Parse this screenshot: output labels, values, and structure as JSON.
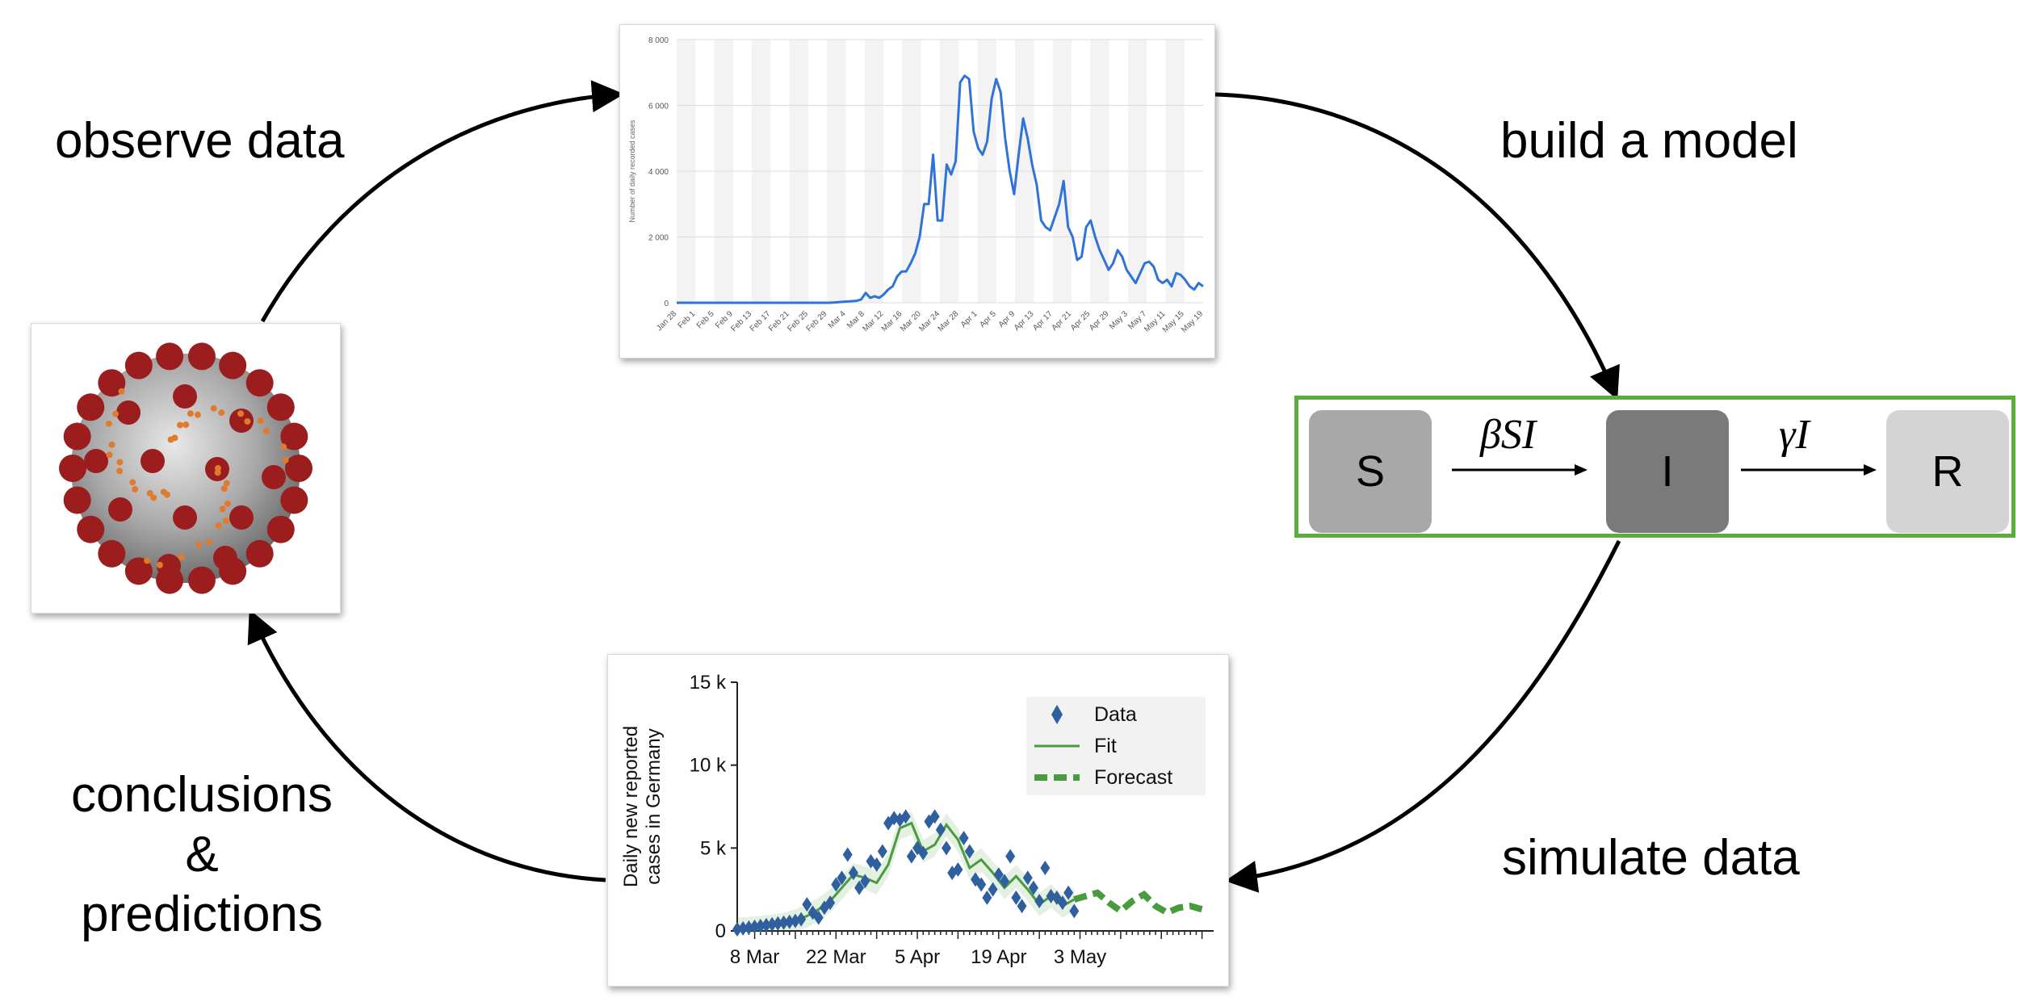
{
  "labels": {
    "observe": "observe data",
    "build": "build a model",
    "simulate": "simulate data",
    "conclusions": [
      "conclusions",
      "&",
      "predictions"
    ]
  },
  "icons": {
    "virus": "coronavirus-icon"
  },
  "colors": {
    "line_blue": "#2f73d8",
    "fit_green": "#4a9a3f",
    "model_border": "#5aad3a",
    "data_blue": "#2f5f9e"
  },
  "model": {
    "compartments": [
      "S",
      "I",
      "R"
    ],
    "rates": [
      "βSI",
      "γI"
    ]
  },
  "chart_data": [
    {
      "type": "line",
      "title": "",
      "xlabel": "",
      "ylabel": "Number of daily recorded cases",
      "ylim": [
        0,
        8000
      ],
      "y_ticks": [
        "0",
        "2 000",
        "4 000",
        "6 000",
        "8 000"
      ],
      "x_ticks": [
        "Jan 28",
        "Feb 1",
        "Feb 5",
        "Feb 9",
        "Feb 13",
        "Feb 17",
        "Feb 21",
        "Feb 25",
        "Feb 29",
        "Mar 4",
        "Mar 8",
        "Mar 12",
        "Mar 16",
        "Mar 20",
        "Mar 24",
        "Mar 28",
        "Apr 1",
        "Apr 5",
        "Apr 9",
        "Apr 13",
        "Apr 17",
        "Apr 21",
        "Apr 25",
        "Apr 29",
        "May 3",
        "May 7",
        "May 11",
        "May 15",
        "May 19"
      ],
      "grid": true,
      "series": [
        {
          "values": [
            0,
            0,
            0,
            0,
            0,
            0,
            0,
            0,
            0,
            0,
            0,
            0,
            0,
            0,
            0,
            0,
            0,
            0,
            0,
            0,
            0,
            0,
            0,
            0,
            0,
            0,
            0,
            0,
            0,
            0,
            0,
            0,
            0,
            0,
            0,
            10,
            20,
            30,
            40,
            50,
            60,
            100,
            300,
            150,
            200,
            150,
            250,
            400,
            500,
            800,
            950,
            950,
            1200,
            1500,
            2000,
            3000,
            3000,
            4500,
            2500,
            2500,
            4200,
            3900,
            4300,
            6700,
            6900,
            6800,
            5200,
            4700,
            4500,
            4900,
            6200,
            6800,
            6400,
            5000,
            4000,
            3300,
            4500,
            5600,
            5000,
            4200,
            3600,
            2500,
            2300,
            2200,
            2600,
            3000,
            3700,
            2300,
            2000,
            1300,
            1400,
            2300,
            2500,
            2000,
            1600,
            1300,
            1000,
            1200,
            1600,
            1400,
            1000,
            800,
            600,
            900,
            1200,
            1250,
            1100,
            700,
            600,
            700,
            500,
            900,
            850,
            700,
            500,
            400,
            600,
            500
          ]
        }
      ]
    },
    {
      "type": "line",
      "title": "",
      "xlabel": "",
      "ylabel": "Daily new reported cases in Germany",
      "ylim": [
        0,
        15000
      ],
      "y_ticks": [
        "0",
        "5 k",
        "10 k",
        "15 k"
      ],
      "x_ticks": [
        "8 Mar",
        "22 Mar",
        "5 Apr",
        "19 Apr",
        "3 May"
      ],
      "legend": {
        "position": "top-right",
        "entries": [
          "Data",
          "Fit",
          "Forecast"
        ]
      },
      "series": [
        {
          "name": "Data",
          "style": "diamond",
          "x_days": [
            0,
            1,
            2,
            3,
            4,
            5,
            6,
            7,
            8,
            9,
            10,
            11,
            12,
            13,
            14,
            15,
            16,
            17,
            18,
            19,
            20,
            21,
            22,
            23,
            24,
            25,
            26,
            27,
            28,
            29,
            30,
            31,
            32,
            33,
            34,
            35,
            36,
            37,
            38,
            39,
            40,
            41,
            42,
            43,
            44,
            45,
            46,
            47,
            48,
            49,
            50,
            51,
            52,
            53,
            54,
            55,
            56,
            57,
            58
          ],
          "values": [
            100,
            150,
            200,
            250,
            300,
            350,
            400,
            450,
            500,
            550,
            600,
            700,
            1600,
            1100,
            800,
            1400,
            1700,
            2800,
            3200,
            4600,
            3500,
            2600,
            3000,
            4200,
            4000,
            4800,
            6500,
            6800,
            6700,
            6900,
            4500,
            5000,
            4700,
            6600,
            6900,
            6100,
            5000,
            3500,
            3700,
            5600,
            4800,
            3100,
            2800,
            2000,
            2500,
            3400,
            3000,
            4500,
            2000,
            1500,
            3200,
            2600,
            1800,
            3800,
            2100,
            2000,
            1700,
            2300,
            1200
          ]
        },
        {
          "name": "Fit",
          "style": "solid",
          "x_days": [
            0,
            4,
            8,
            10,
            12,
            14,
            16,
            18,
            20,
            22,
            24,
            26,
            28,
            30,
            32,
            34,
            36,
            38,
            40,
            42,
            44,
            46,
            48,
            50,
            52,
            54,
            56,
            58
          ],
          "values": [
            100,
            200,
            400,
            600,
            900,
            1300,
            1800,
            2600,
            3400,
            3200,
            2900,
            4000,
            6200,
            6500,
            4800,
            5200,
            6400,
            5500,
            3800,
            4300,
            3500,
            2600,
            3300,
            2500,
            1600,
            2100,
            1500,
            1900
          ]
        },
        {
          "name": "Forecast",
          "style": "dashed",
          "x_days": [
            58,
            60,
            62,
            64,
            66,
            68,
            70,
            72,
            74,
            76,
            78,
            80
          ],
          "values": [
            1900,
            2100,
            2300,
            1700,
            1200,
            1800,
            2200,
            1500,
            1100,
            1400,
            1500,
            1300
          ]
        }
      ]
    }
  ]
}
